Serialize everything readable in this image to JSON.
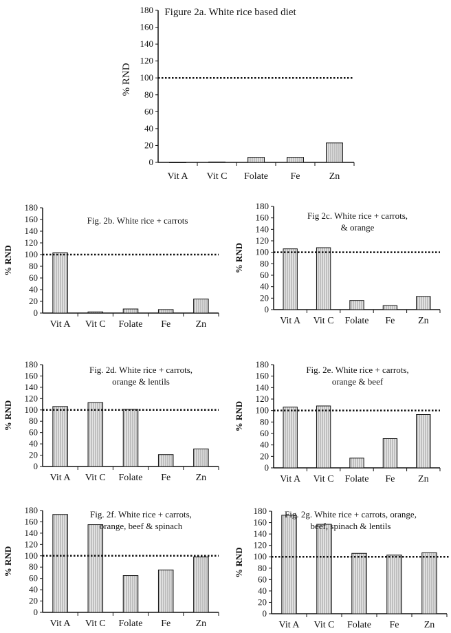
{
  "chart_data": [
    {
      "id": "2a",
      "type": "bar",
      "title": [
        "Figure 2a. White rice based diet"
      ],
      "ylabel": "% RND",
      "categories": [
        "Vit A",
        "Vit C",
        "Folate",
        "Fe",
        "Zn"
      ],
      "values": [
        0,
        0.5,
        6,
        6,
        23
      ],
      "ylim": [
        0,
        180
      ],
      "yticks": [
        0,
        20,
        40,
        60,
        80,
        100,
        120,
        140,
        160,
        180
      ],
      "reference_line": 100
    },
    {
      "id": "2b",
      "type": "bar",
      "title": [
        "Fig. 2b. White rice + carrots"
      ],
      "ylabel": "% RND",
      "categories": [
        "Vit A",
        "Vit C",
        "Folate",
        "Fe",
        "Zn"
      ],
      "values": [
        103,
        2,
        7,
        6,
        24
      ],
      "ylim": [
        0,
        180
      ],
      "yticks": [
        0,
        20,
        40,
        60,
        80,
        100,
        120,
        140,
        160,
        180
      ],
      "reference_line": 100
    },
    {
      "id": "2c",
      "type": "bar",
      "title": [
        "Fig 2c. White rice + carrots,",
        "& orange"
      ],
      "ylabel": "% RND",
      "categories": [
        "Vit A",
        "Vit C",
        "Folate",
        "Fe",
        "Zn"
      ],
      "values": [
        106,
        108,
        16,
        7,
        23
      ],
      "ylim": [
        0,
        180
      ],
      "yticks": [
        0,
        20,
        40,
        60,
        80,
        100,
        120,
        140,
        160,
        180
      ],
      "reference_line": 100
    },
    {
      "id": "2d",
      "type": "bar",
      "title": [
        "Fig. 2d. White rice + carrots,",
        "orange & lentils"
      ],
      "ylabel": "% RND",
      "categories": [
        "Vit A",
        "Vit C",
        "Folate",
        "Fe",
        "Zn"
      ],
      "values": [
        106,
        113,
        101,
        21,
        31
      ],
      "ylim": [
        0,
        180
      ],
      "yticks": [
        0,
        20,
        40,
        60,
        80,
        100,
        120,
        140,
        160,
        180
      ],
      "reference_line": 100
    },
    {
      "id": "2e",
      "type": "bar",
      "title": [
        "Fig. 2e. White rice + carrots,",
        "orange & beef"
      ],
      "ylabel": "% RND",
      "categories": [
        "Vit A",
        "Vit C",
        "Folate",
        "Fe",
        "Zn"
      ],
      "values": [
        106,
        108,
        17,
        51,
        93
      ],
      "ylim": [
        0,
        180
      ],
      "yticks": [
        0,
        20,
        40,
        60,
        80,
        100,
        120,
        140,
        160,
        180
      ],
      "reference_line": 100
    },
    {
      "id": "2f",
      "type": "bar",
      "title": [
        "Fig. 2f. White rice + carrots,",
        "orange, beef & spinach"
      ],
      "ylabel": "% RND",
      "categories": [
        "Vit A",
        "Vit C",
        "Folate",
        "Fe",
        "Zn"
      ],
      "values": [
        173,
        155,
        65,
        75,
        98
      ],
      "ylim": [
        0,
        180
      ],
      "yticks": [
        0,
        20,
        40,
        60,
        80,
        100,
        120,
        140,
        160,
        180
      ],
      "reference_line": 100
    },
    {
      "id": "2g",
      "type": "bar",
      "title": [
        "Fig. 2g. White rice + carrots,  orange,",
        "beef, spinach &  lentils"
      ],
      "ylabel": "% RND",
      "categories": [
        "Vit A",
        "Vit C",
        "Folate",
        "Fe",
        "Zn"
      ],
      "values": [
        173,
        157,
        106,
        103,
        107
      ],
      "ylim": [
        0,
        180
      ],
      "yticks": [
        0,
        20,
        40,
        60,
        80,
        100,
        120,
        140,
        160,
        180
      ],
      "reference_line": 100
    }
  ],
  "colors": {
    "bar_fill": "#cfcfcf",
    "bar_stroke": "#111111",
    "axis": "#111111",
    "reference": "#111111"
  }
}
